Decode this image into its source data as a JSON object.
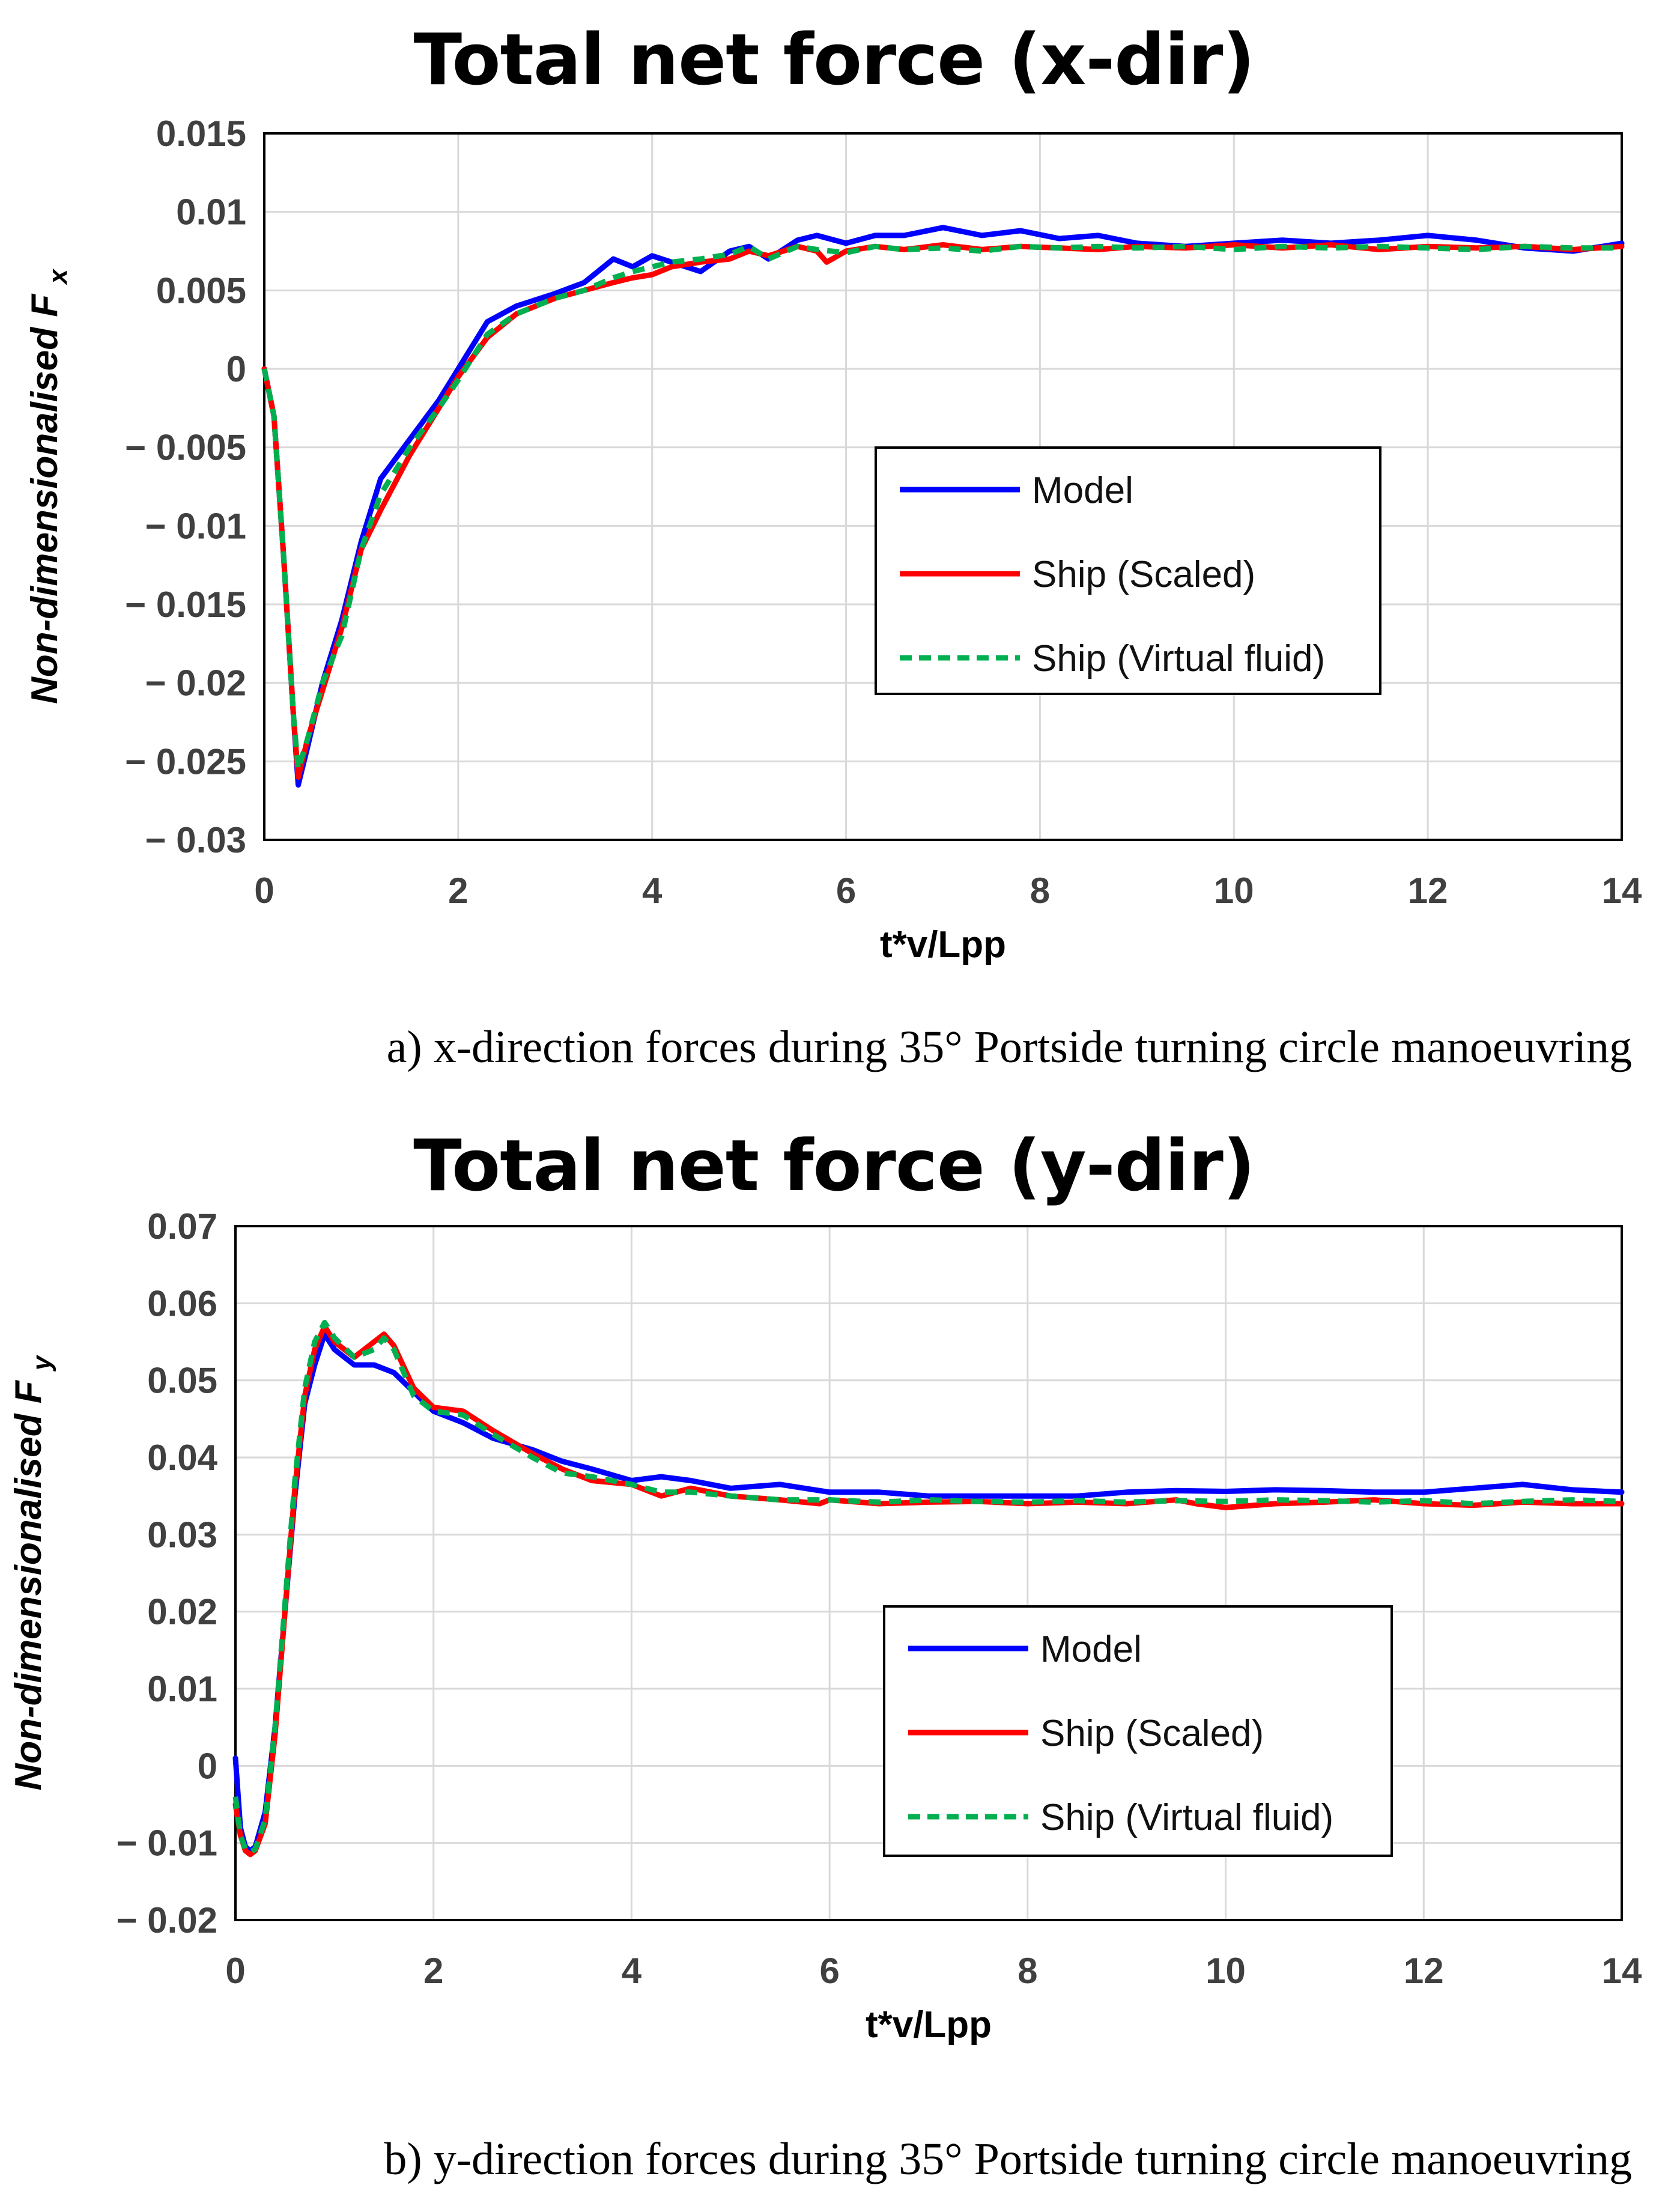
{
  "chart_data": [
    {
      "type": "line",
      "title": "Total net force (x-dir)",
      "xlabel": "t*v/Lpp",
      "ylabel": "Non-dimensionalised F",
      "ylabel_subscript": "x",
      "xlim": [
        0,
        14
      ],
      "ylim": [
        -0.03,
        0.015
      ],
      "xticks": [
        0,
        2,
        4,
        6,
        8,
        10,
        12,
        14
      ],
      "xtick_labels": [
        "0",
        "2",
        "4",
        "6",
        "8",
        "10",
        "12",
        "14"
      ],
      "yticks": [
        0.015,
        0.01,
        0.005,
        0,
        -0.005,
        -0.01,
        -0.015,
        -0.02,
        -0.025,
        -0.03
      ],
      "ytick_labels": [
        "0.015",
        "0.01",
        "0.005",
        "0",
        "− 0.005",
        "− 0.01",
        "− 0.015",
        "− 0.02",
        "− 0.025",
        "− 0.03"
      ],
      "grid": true,
      "legend": "center-right",
      "caption": "a) x-direction forces during  35° Portside turning circle manoeuvring",
      "series": [
        {
          "name": "Model",
          "color": "#0000ff",
          "dash": "solid",
          "x": [
            0,
            0.1,
            0.2,
            0.3,
            0.35,
            0.45,
            0.6,
            0.8,
            1.0,
            1.2,
            1.5,
            1.8,
            2.0,
            2.3,
            2.6,
            3.0,
            3.3,
            3.6,
            3.8,
            4.0,
            4.2,
            4.5,
            4.8,
            5.0,
            5.2,
            5.5,
            5.7,
            6.0,
            6.3,
            6.6,
            7.0,
            7.4,
            7.8,
            8.2,
            8.6,
            9.0,
            9.5,
            10.0,
            10.5,
            11.0,
            11.5,
            12.0,
            12.5,
            13.0,
            13.5,
            14.0
          ],
          "y": [
            0,
            -0.003,
            -0.012,
            -0.022,
            -0.0265,
            -0.024,
            -0.02,
            -0.016,
            -0.011,
            -0.007,
            -0.0045,
            -0.002,
            0,
            0.003,
            0.004,
            0.0048,
            0.0055,
            0.007,
            0.0065,
            0.0072,
            0.0068,
            0.0062,
            0.0075,
            0.0078,
            0.007,
            0.0082,
            0.0085,
            0.008,
            0.0085,
            0.0085,
            0.009,
            0.0085,
            0.0088,
            0.0083,
            0.0085,
            0.008,
            0.0078,
            0.008,
            0.0082,
            0.008,
            0.0082,
            0.0085,
            0.0082,
            0.0077,
            0.0075,
            0.008
          ]
        },
        {
          "name": "Ship (Scaled)",
          "color": "#ff0000",
          "dash": "solid",
          "x": [
            0,
            0.1,
            0.2,
            0.3,
            0.35,
            0.45,
            0.6,
            0.8,
            1.0,
            1.2,
            1.5,
            1.8,
            2.0,
            2.3,
            2.6,
            3.0,
            3.3,
            3.6,
            3.8,
            4.0,
            4.2,
            4.5,
            4.8,
            5.0,
            5.2,
            5.5,
            5.7,
            5.8,
            6.0,
            6.3,
            6.6,
            7.0,
            7.4,
            7.8,
            8.2,
            8.6,
            9.0,
            9.5,
            10.0,
            10.5,
            11.0,
            11.5,
            12.0,
            12.5,
            13.0,
            13.5,
            14.0
          ],
          "y": [
            0,
            -0.003,
            -0.012,
            -0.022,
            -0.026,
            -0.0235,
            -0.0205,
            -0.0165,
            -0.0115,
            -0.009,
            -0.0055,
            -0.0025,
            -0.0005,
            0.002,
            0.0035,
            0.0045,
            0.005,
            0.0055,
            0.0058,
            0.006,
            0.0065,
            0.0068,
            0.007,
            0.0075,
            0.0072,
            0.0078,
            0.0075,
            0.0068,
            0.0075,
            0.0078,
            0.0076,
            0.0079,
            0.0076,
            0.0078,
            0.0077,
            0.0076,
            0.0078,
            0.0077,
            0.0079,
            0.0077,
            0.0079,
            0.0076,
            0.0078,
            0.0077,
            0.0078,
            0.0076,
            0.0078
          ]
        },
        {
          "name": "Ship (Virtual fluid)",
          "color": "#00b050",
          "dash": "dashed",
          "x": [
            0,
            0.1,
            0.2,
            0.3,
            0.35,
            0.45,
            0.6,
            0.8,
            1.0,
            1.2,
            1.5,
            1.8,
            2.0,
            2.3,
            2.6,
            3.0,
            3.3,
            3.6,
            3.8,
            4.0,
            4.2,
            4.5,
            4.8,
            5.0,
            5.2,
            5.5,
            5.7,
            6.0,
            6.3,
            6.6,
            7.0,
            7.4,
            7.8,
            8.2,
            8.6,
            9.0,
            9.5,
            10.0,
            10.5,
            11.0,
            11.5,
            12.0,
            12.5,
            13.0,
            13.5,
            14.0
          ],
          "y": [
            0,
            -0.003,
            -0.012,
            -0.022,
            -0.0255,
            -0.0235,
            -0.02,
            -0.017,
            -0.0115,
            -0.008,
            -0.005,
            -0.0025,
            -0.0007,
            0.0022,
            0.0035,
            0.0045,
            0.005,
            0.0058,
            0.0062,
            0.0065,
            0.0068,
            0.007,
            0.0073,
            0.0078,
            0.007,
            0.0078,
            0.0076,
            0.0074,
            0.0078,
            0.0076,
            0.0077,
            0.0075,
            0.0078,
            0.0077,
            0.0078,
            0.0077,
            0.0078,
            0.0076,
            0.0078,
            0.0077,
            0.0078,
            0.0077,
            0.0076,
            0.0078,
            0.0077,
            0.0077
          ]
        }
      ]
    },
    {
      "type": "line",
      "title": "Total net force (y-dir)",
      "xlabel": "t*v/Lpp",
      "ylabel": "Non-dimensionalised F",
      "ylabel_subscript": "y",
      "xlim": [
        0,
        14
      ],
      "ylim": [
        -0.02,
        0.07
      ],
      "xticks": [
        0,
        2,
        4,
        6,
        8,
        10,
        12,
        14
      ],
      "xtick_labels": [
        "0",
        "2",
        "4",
        "6",
        "8",
        "10",
        "12",
        "14"
      ],
      "yticks": [
        0.07,
        0.06,
        0.05,
        0.04,
        0.03,
        0.02,
        0.01,
        0,
        -0.01,
        -0.02
      ],
      "ytick_labels": [
        "0.07",
        "0.06",
        "0.05",
        "0.04",
        "0.03",
        "0.02",
        "0.01",
        "0",
        "− 0.01",
        "− 0.02"
      ],
      "grid": true,
      "legend": "center-right",
      "caption": "b) y-direction forces during  35° Portside turning circle manoeuvring",
      "series": [
        {
          "name": "Model",
          "color": "#0000ff",
          "dash": "solid",
          "x": [
            0,
            0.05,
            0.1,
            0.15,
            0.2,
            0.3,
            0.4,
            0.5,
            0.6,
            0.7,
            0.8,
            0.9,
            1.0,
            1.2,
            1.4,
            1.6,
            1.8,
            2.0,
            2.3,
            2.6,
            3.0,
            3.3,
            3.6,
            4.0,
            4.3,
            4.6,
            5.0,
            5.5,
            6.0,
            6.5,
            7.0,
            7.5,
            8.0,
            8.5,
            9.0,
            9.5,
            10.0,
            10.5,
            11.0,
            11.5,
            12.0,
            12.5,
            13.0,
            13.5,
            14.0
          ],
          "y": [
            0.001,
            -0.008,
            -0.0105,
            -0.011,
            -0.0105,
            -0.006,
            0.005,
            0.02,
            0.035,
            0.047,
            0.052,
            0.056,
            0.054,
            0.052,
            0.052,
            0.051,
            0.0485,
            0.046,
            0.0445,
            0.0425,
            0.041,
            0.0395,
            0.0385,
            0.037,
            0.0375,
            0.037,
            0.036,
            0.0365,
            0.0355,
            0.0355,
            0.035,
            0.035,
            0.035,
            0.035,
            0.0355,
            0.0357,
            0.0356,
            0.0358,
            0.0357,
            0.0355,
            0.0355,
            0.036,
            0.0365,
            0.0358,
            0.0355
          ]
        },
        {
          "name": "Ship (Scaled)",
          "color": "#ff0000",
          "dash": "solid",
          "x": [
            0,
            0.05,
            0.1,
            0.15,
            0.2,
            0.3,
            0.4,
            0.5,
            0.6,
            0.7,
            0.8,
            0.9,
            1.0,
            1.2,
            1.4,
            1.5,
            1.6,
            1.8,
            2.0,
            2.3,
            2.6,
            3.0,
            3.3,
            3.6,
            4.0,
            4.3,
            4.6,
            5.0,
            5.5,
            5.9,
            6.0,
            6.5,
            7.0,
            7.5,
            8.0,
            8.5,
            9.0,
            9.5,
            9.7,
            10.0,
            10.5,
            11.0,
            11.5,
            12.0,
            12.5,
            13.0,
            13.5,
            14.0
          ],
          "y": [
            -0.005,
            -0.009,
            -0.011,
            -0.0115,
            -0.011,
            -0.0075,
            0.004,
            0.02,
            0.036,
            0.048,
            0.054,
            0.057,
            0.055,
            0.053,
            0.055,
            0.056,
            0.0545,
            0.049,
            0.0465,
            0.046,
            0.0435,
            0.0405,
            0.0385,
            0.037,
            0.0365,
            0.035,
            0.036,
            0.035,
            0.0345,
            0.034,
            0.0345,
            0.034,
            0.0342,
            0.0343,
            0.034,
            0.0342,
            0.034,
            0.0345,
            0.034,
            0.0335,
            0.034,
            0.0342,
            0.0345,
            0.034,
            0.0338,
            0.0342,
            0.034,
            0.034
          ]
        },
        {
          "name": "Ship (Virtual fluid)",
          "color": "#00b050",
          "dash": "dashed",
          "x": [
            0,
            0.05,
            0.1,
            0.15,
            0.2,
            0.3,
            0.4,
            0.5,
            0.6,
            0.7,
            0.8,
            0.9,
            1.0,
            1.2,
            1.4,
            1.5,
            1.6,
            1.8,
            2.0,
            2.3,
            2.6,
            3.0,
            3.3,
            3.6,
            4.0,
            4.3,
            4.6,
            5.0,
            5.5,
            6.0,
            6.5,
            7.0,
            7.5,
            8.0,
            8.5,
            9.0,
            9.5,
            10.0,
            10.5,
            11.0,
            11.5,
            12.0,
            12.5,
            13.0,
            13.5,
            14.0
          ],
          "y": [
            -0.004,
            -0.009,
            -0.0108,
            -0.0112,
            -0.0108,
            -0.007,
            0.005,
            0.021,
            0.037,
            0.049,
            0.055,
            0.0575,
            0.0555,
            0.053,
            0.054,
            0.0555,
            0.054,
            0.048,
            0.046,
            0.0455,
            0.043,
            0.04,
            0.038,
            0.0375,
            0.0365,
            0.0355,
            0.0355,
            0.035,
            0.0345,
            0.0345,
            0.0342,
            0.0345,
            0.0343,
            0.0342,
            0.0344,
            0.0342,
            0.0344,
            0.0343,
            0.0345,
            0.0344,
            0.0342,
            0.0344,
            0.034,
            0.0343,
            0.0345,
            0.0343
          ]
        }
      ]
    }
  ]
}
